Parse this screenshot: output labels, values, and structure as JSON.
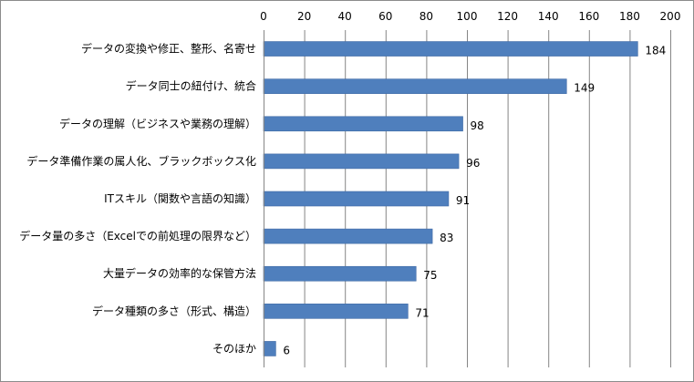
{
  "chart_data": {
    "type": "bar",
    "orientation": "horizontal",
    "categories": [
      "データの変換や修正、整形、名寄せ",
      "データ同士の紐付け、統合",
      "データの理解（ビジネスや業務の理解）",
      "データ準備作業の属人化、ブラックボックス化",
      "ITスキル（関数や言語の知識）",
      "データ量の多さ（Excelでの前処理の限界など）",
      "大量データの効率的な保管方法",
      "データ種類の多さ（形式、構造）",
      "そのほか"
    ],
    "values": [
      184,
      149,
      98,
      96,
      91,
      83,
      75,
      71,
      6
    ],
    "xlim": [
      0,
      200
    ],
    "xticks": [
      0,
      20,
      40,
      60,
      80,
      100,
      120,
      140,
      160,
      180,
      200
    ],
    "axis_position": "top",
    "grid": true,
    "data_labels": true,
    "legend": "none",
    "title": "",
    "xlabel": "",
    "ylabel": "",
    "colors": {
      "bar": "#4f7fbd",
      "bar_edge": "#3f6aa5",
      "grid": "#868686",
      "axis": "#868686"
    }
  }
}
